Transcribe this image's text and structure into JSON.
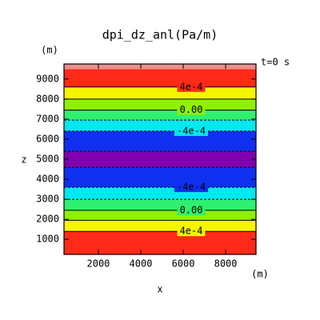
{
  "chart_data": {
    "type": "contour",
    "title": "dpi_dz_anl(Pa/m)",
    "y_unit": "(m)",
    "y_label": "z",
    "x_unit": "(m)",
    "x_label": "x",
    "time_label": "t=0  s",
    "xlim": [
      380,
      9430
    ],
    "ylim": [
      250,
      9750
    ],
    "xticks": [
      2000,
      4000,
      6000,
      8000
    ],
    "yticks": [
      1000,
      2000,
      3000,
      4000,
      5000,
      6000,
      7000,
      8000,
      9000
    ],
    "bands": [
      {
        "from": 250,
        "to": 1400,
        "color": "#ff2a1a"
      },
      {
        "from": 1400,
        "to": 1950,
        "color": "#f5f500"
      },
      {
        "from": 1950,
        "to": 2450,
        "color": "#90f000"
      },
      {
        "from": 2450,
        "to": 3000,
        "color": "#30f070"
      },
      {
        "from": 3000,
        "to": 3600,
        "color": "#00e8f0"
      },
      {
        "from": 3600,
        "to": 4600,
        "color": "#1030f0"
      },
      {
        "from": 4600,
        "to": 5400,
        "color": "#8000b0"
      },
      {
        "from": 5400,
        "to": 6400,
        "color": "#1030f0"
      },
      {
        "from": 6400,
        "to": 6950,
        "color": "#00e8f0"
      },
      {
        "from": 6950,
        "to": 7450,
        "color": "#30f070"
      },
      {
        "from": 7450,
        "to": 8000,
        "color": "#90f000"
      },
      {
        "from": 8000,
        "to": 8600,
        "color": "#f5f500"
      },
      {
        "from": 8600,
        "to": 9500,
        "color": "#ff2a1a"
      },
      {
        "from": 9500,
        "to": 9750,
        "color": "#e89090"
      }
    ],
    "contours": [
      {
        "z": 1400,
        "label": "4e-4",
        "dashed": false
      },
      {
        "z": 1950,
        "dashed": false
      },
      {
        "z": 2450,
        "label": "0.00",
        "dashed": false
      },
      {
        "z": 3000,
        "dashed": true
      },
      {
        "z": 3600,
        "label": "-4e-4",
        "dashed": true
      },
      {
        "z": 4600,
        "dashed": true
      },
      {
        "z": 5400,
        "dashed": true
      },
      {
        "z": 6400,
        "label": "-4e-4",
        "dashed": true
      },
      {
        "z": 6950,
        "dashed": true
      },
      {
        "z": 7450,
        "label": "0.00",
        "dashed": false
      },
      {
        "z": 8000,
        "dashed": false
      },
      {
        "z": 8600,
        "label": "4e-4",
        "dashed": false
      }
    ]
  }
}
